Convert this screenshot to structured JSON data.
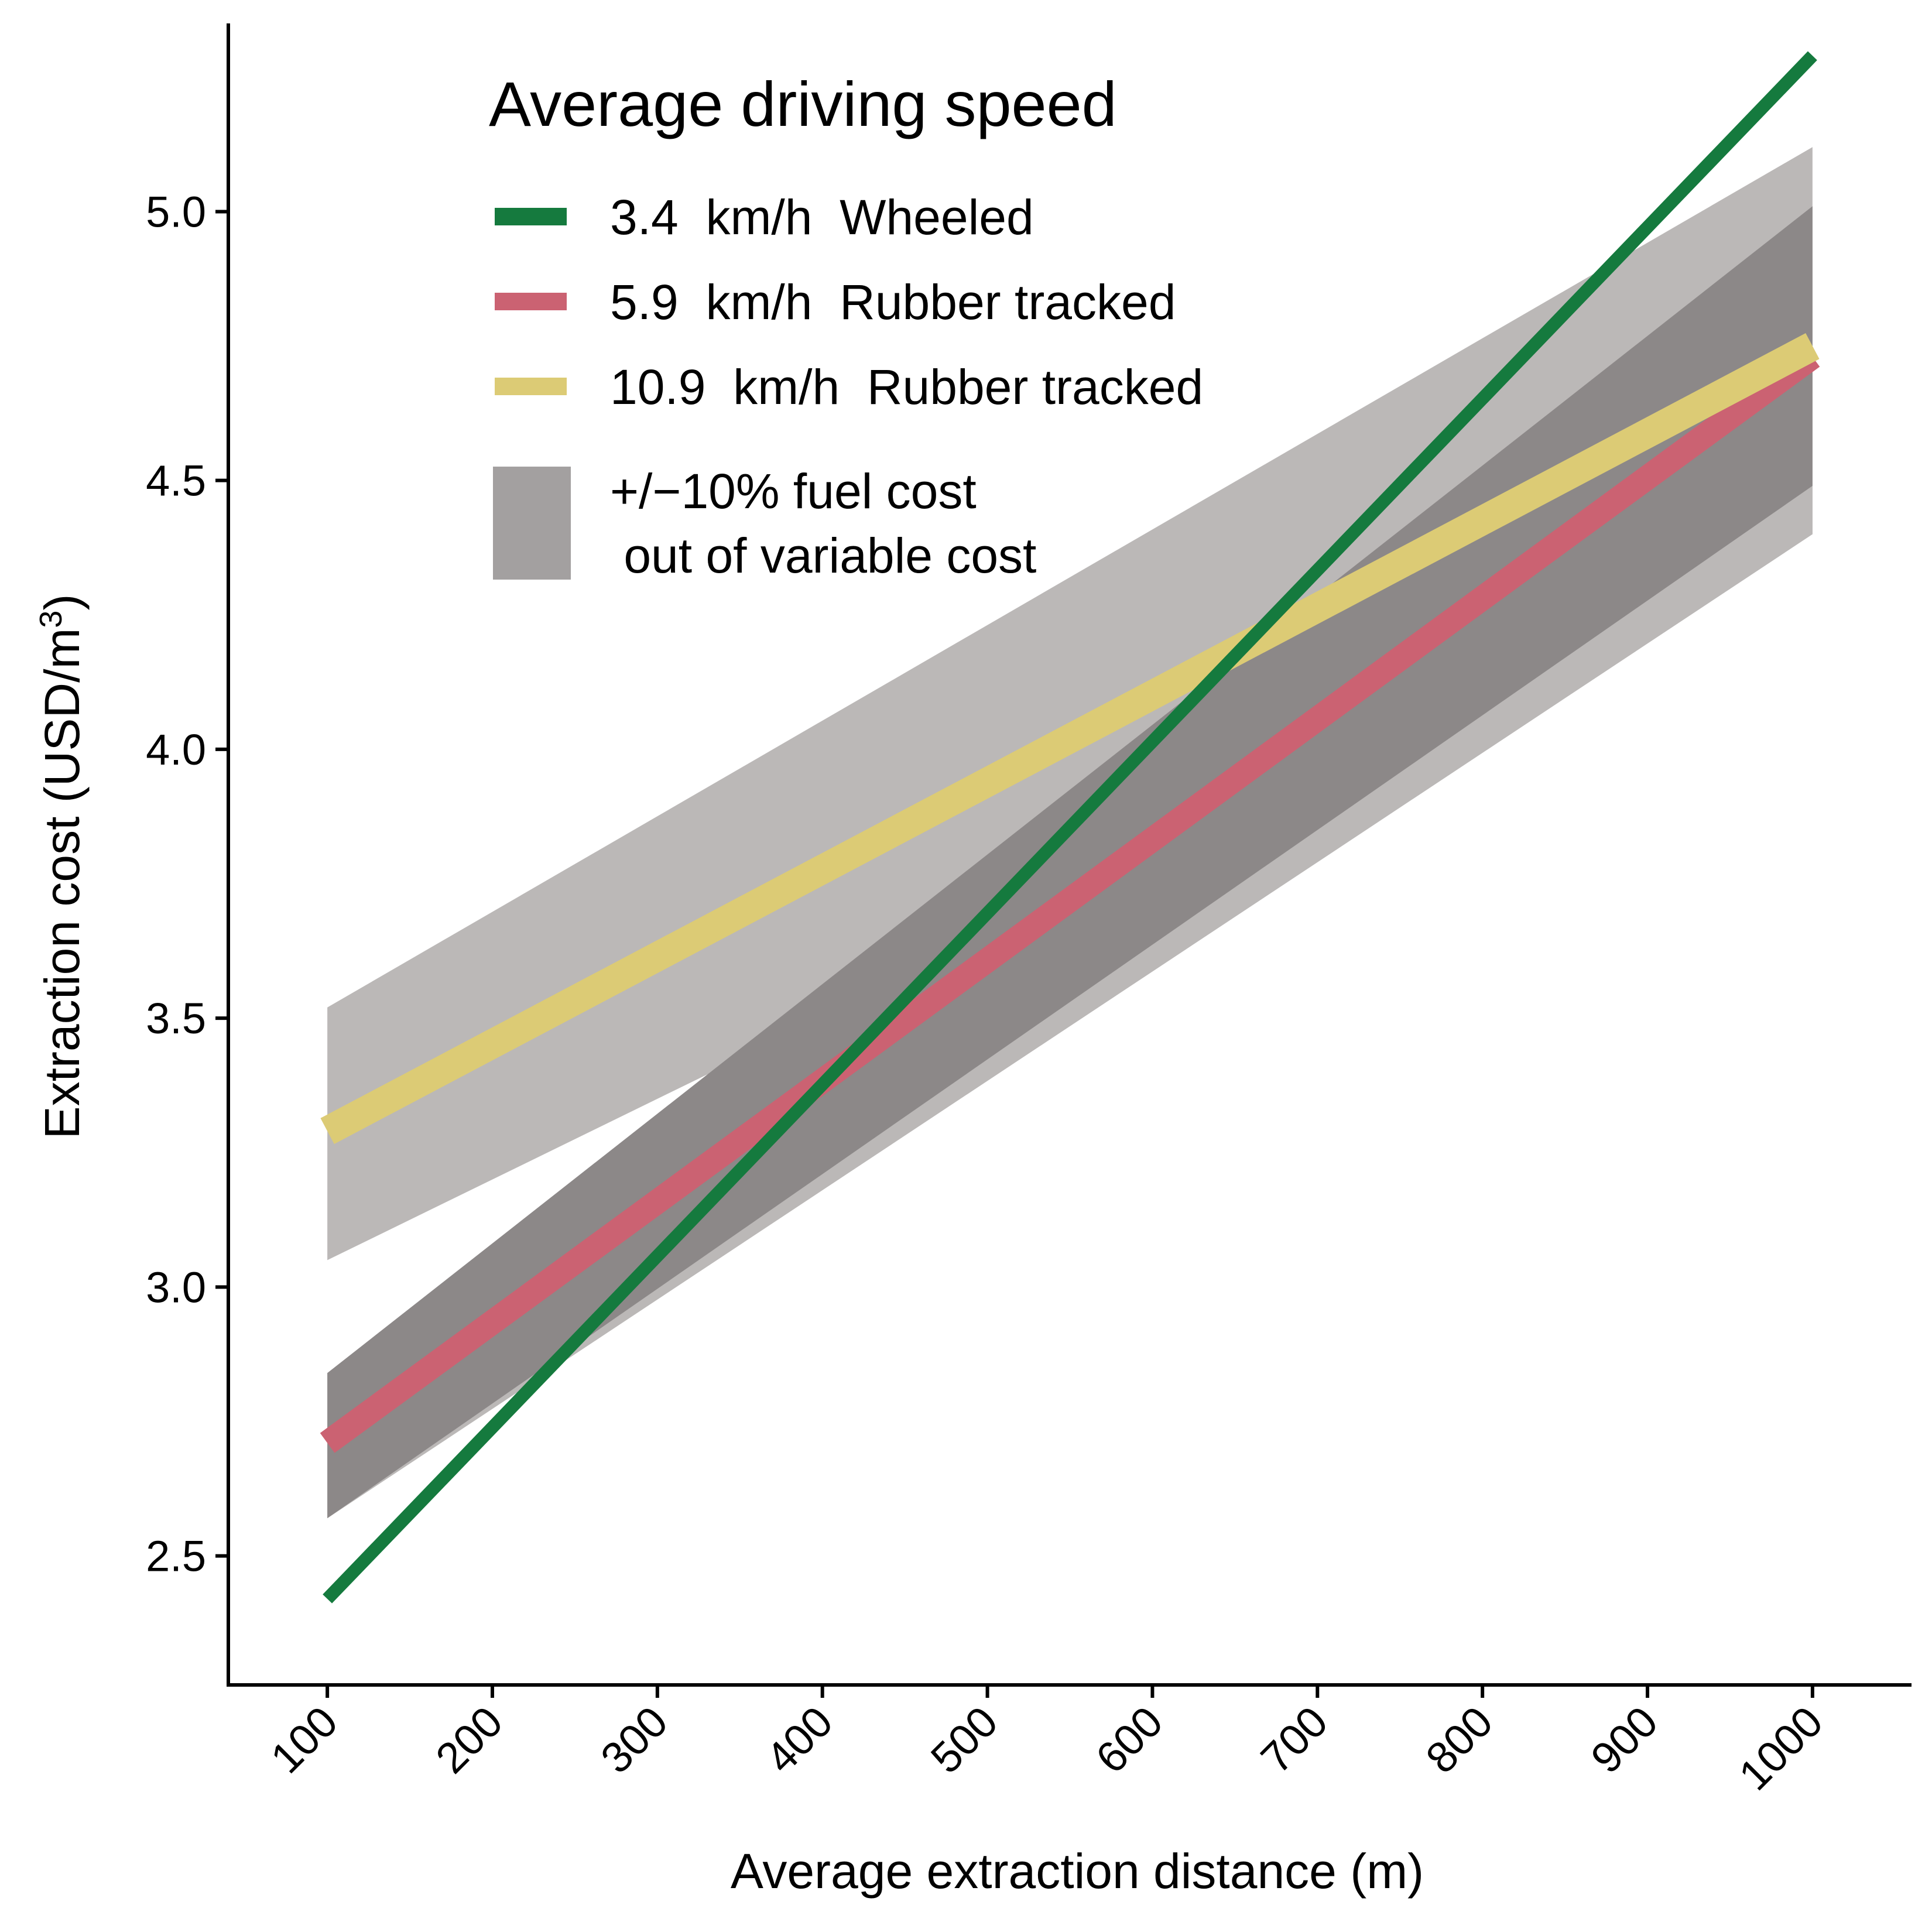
{
  "chart_data": {
    "type": "line",
    "title": "",
    "xlabel": "Average extraction distance (m)",
    "ylabel": "Extraction cost (USD/m",
    "ylabel_superscript": "3",
    "ylabel_close": ")",
    "xlim": [
      40,
      1060
    ],
    "ylim": [
      2.26,
      5.35
    ],
    "x_ticks": [
      100,
      200,
      300,
      400,
      500,
      600,
      700,
      800,
      900,
      1000
    ],
    "x_tick_labels": [
      "100",
      "200",
      "300",
      "400",
      "500",
      "600",
      "700",
      "800",
      "900",
      "1000"
    ],
    "y_ticks": [
      2.5,
      3.0,
      3.5,
      4.0,
      4.5,
      5.0
    ],
    "y_tick_labels": [
      "2.5",
      "3.0",
      "3.5",
      "4.0",
      "4.5",
      "5.0"
    ],
    "grid": false,
    "legend": {
      "title": "Average driving speed",
      "position": "top-left",
      "band_label_line1": "+/−10% fuel cost",
      "band_label_line2": " out of variable cost"
    },
    "series": [
      {
        "name": "3.4  km/h  Wheeled",
        "color": "#157a3e",
        "x": [
          100,
          1000
        ],
        "values": [
          2.42,
          5.29
        ],
        "band": {
          "lower": [
            2.57,
            4.49
          ],
          "upper": [
            2.84,
            5.01
          ],
          "color": "#8c8888"
        }
      },
      {
        "name": "5.9  km/h  Rubber tracked",
        "color": "#cb6272",
        "x": [
          100,
          1000
        ],
        "values": [
          2.71,
          4.73
        ],
        "band": {
          "lower": [
            2.57,
            4.4
          ],
          "upper": [
            2.84,
            5.01
          ],
          "color": "#bbb8b7"
        }
      },
      {
        "name": "10.9  km/h  Rubber tracked",
        "color": "#dccb75",
        "x": [
          100,
          1000
        ],
        "values": [
          3.29,
          4.75
        ],
        "band": {
          "lower": [
            3.05,
            4.4
          ],
          "upper": [
            3.52,
            5.12
          ],
          "color": "#bbb8b7"
        }
      }
    ],
    "band_legend_color": "#a3a0a0"
  }
}
